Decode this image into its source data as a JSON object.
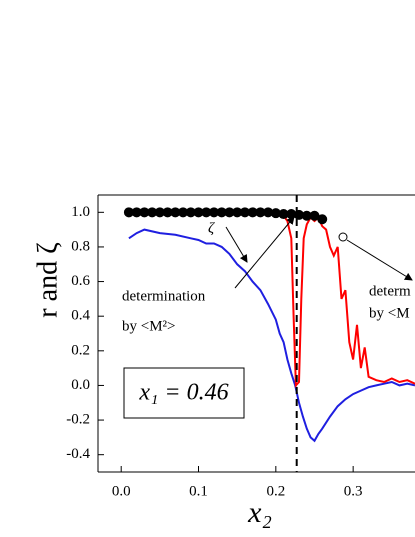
{
  "chart_data": {
    "type": "line",
    "ylabel": "r and ζ",
    "xlabel": "x₂",
    "annotations": [
      "ζ",
      "determination",
      "by <M²>",
      "determ",
      "by <M",
      "x₁ = 0.46"
    ],
    "xlim": [
      -0.03,
      0.38
    ],
    "ylim": [
      -0.5,
      1.1
    ],
    "xticks": [
      {
        "value": 0,
        "label": "0.0"
      },
      0.1,
      0.2,
      0.3
    ],
    "yticks": [
      {
        "value": -0.4,
        "label": "-0.4"
      },
      -0.2,
      {
        "value": 0,
        "label": "0.0"
      },
      0.2,
      0.4,
      0.6,
      0.8,
      {
        "value": 1,
        "label": "1.0"
      }
    ],
    "vline": 0.227,
    "series": [
      {
        "color": "#1f1fe0",
        "marker": "none",
        "x": [
          0.01,
          0.02,
          0.03,
          0.05,
          0.07,
          0.09,
          0.1,
          0.11,
          0.12,
          0.13,
          0.14,
          0.15,
          0.16,
          0.17,
          0.18,
          0.19,
          0.2,
          0.205,
          0.21,
          0.215,
          0.22,
          0.225,
          0.23,
          0.235,
          0.24,
          0.245,
          0.25,
          0.255,
          0.26,
          0.27,
          0.28,
          0.29,
          0.3,
          0.31,
          0.32,
          0.33,
          0.34,
          0.35,
          0.36,
          0.37,
          0.38
        ],
        "values": [
          0.85,
          0.88,
          0.9,
          0.88,
          0.87,
          0.85,
          0.84,
          0.82,
          0.82,
          0.8,
          0.76,
          0.7,
          0.66,
          0.6,
          0.55,
          0.47,
          0.38,
          0.3,
          0.25,
          0.15,
          0.07,
          0.0,
          -0.1,
          -0.18,
          -0.25,
          -0.3,
          -0.32,
          -0.28,
          -0.25,
          -0.18,
          -0.12,
          -0.08,
          -0.05,
          -0.03,
          -0.01,
          0.0,
          0.01,
          0.02,
          0.0,
          0.01,
          0.0
        ]
      },
      {
        "color": "#ff0000",
        "marker": "none",
        "x": [
          0.01,
          0.05,
          0.1,
          0.15,
          0.2,
          0.21,
          0.215,
          0.22,
          0.223,
          0.226,
          0.23,
          0.233,
          0.236,
          0.24,
          0.245,
          0.25,
          0.255,
          0.26,
          0.265,
          0.27,
          0.275,
          0.28,
          0.285,
          0.29,
          0.295,
          0.3,
          0.305,
          0.31,
          0.315,
          0.32,
          0.33,
          0.34,
          0.35,
          0.36,
          0.37,
          0.38
        ],
        "values": [
          1.0,
          1.0,
          1.0,
          1.0,
          0.99,
          0.98,
          0.95,
          0.85,
          0.4,
          0.0,
          0.02,
          0.5,
          0.85,
          0.93,
          0.97,
          0.95,
          0.97,
          0.92,
          0.9,
          0.8,
          0.75,
          0.8,
          0.5,
          0.55,
          0.25,
          0.15,
          0.35,
          0.1,
          0.22,
          0.05,
          0.03,
          0.02,
          0.04,
          0.02,
          0.03,
          0.01
        ]
      },
      {
        "color": "#000000",
        "marker": "circle",
        "x": [
          0.01,
          0.02,
          0.03,
          0.04,
          0.05,
          0.06,
          0.07,
          0.08,
          0.09,
          0.1,
          0.11,
          0.12,
          0.13,
          0.14,
          0.15,
          0.16,
          0.17,
          0.18,
          0.19,
          0.2,
          0.21,
          0.22,
          0.23,
          0.24,
          0.25,
          0.26
        ],
        "values": [
          1.0,
          1.0,
          1.0,
          1.0,
          1.0,
          1.0,
          1.0,
          1.0,
          1.0,
          1.0,
          1.0,
          1.0,
          1.0,
          1.0,
          1.0,
          1.0,
          1.0,
          1.0,
          1.0,
          0.995,
          0.99,
          0.99,
          0.985,
          0.98,
          0.98,
          0.96
        ]
      }
    ]
  }
}
